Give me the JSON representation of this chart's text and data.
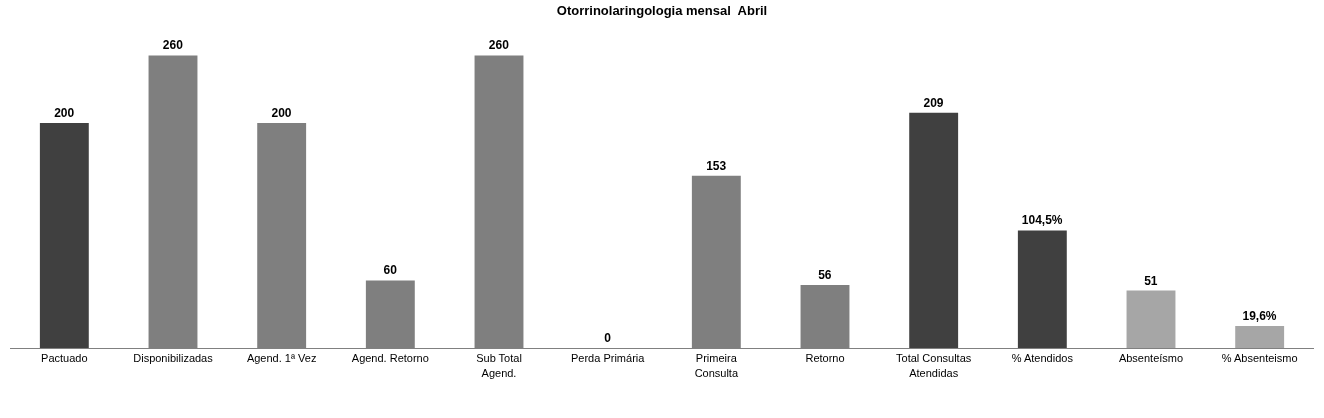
{
  "chart_data": {
    "type": "bar",
    "title": "Otorrinolaringologia mensal  Abril",
    "categories": [
      "Pactuado",
      "Disponibilizadas",
      "Agend. 1ª Vez",
      "Agend. Retorno",
      "Sub Total Agend.",
      "Perda Primária",
      "Primeira Consulta",
      "Retorno",
      "Total Consultas Atendidas",
      "% Atendidos",
      "Absenteísmo",
      "% Absenteismo"
    ],
    "values": [
      200,
      260,
      200,
      60,
      260,
      0,
      153,
      56,
      209,
      104.5,
      51,
      19.6
    ],
    "value_labels": [
      "200",
      "260",
      "200",
      "60",
      "260",
      "0",
      "153",
      "56",
      "209",
      "104,5%",
      "51",
      "19,6%"
    ],
    "colors": [
      "#404040",
      "#7f7f7f",
      "#7f7f7f",
      "#7f7f7f",
      "#7f7f7f",
      "#7f7f7f",
      "#7f7f7f",
      "#7f7f7f",
      "#404040",
      "#404040",
      "#a6a6a6",
      "#a6a6a6"
    ]
  }
}
